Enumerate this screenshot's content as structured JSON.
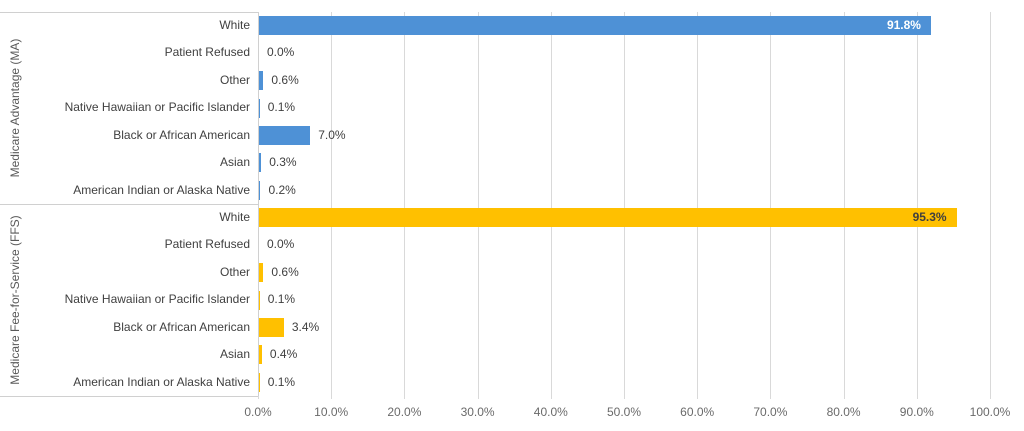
{
  "chart_data": {
    "type": "bar",
    "orientation": "horizontal",
    "title": "",
    "xlabel": "",
    "ylabel": "",
    "legend": "none",
    "gridlines": true,
    "x_axis": {
      "min": 0,
      "max": 100,
      "step": 10,
      "tick_labels": [
        "0.0%",
        "10.0%",
        "20.0%",
        "30.0%",
        "40.0%",
        "50.0%",
        "60.0%",
        "70.0%",
        "80.0%",
        "90.0%",
        "100.0%"
      ]
    },
    "groups": [
      {
        "label": "Medicare Advantage (MA)",
        "bar_color": "#4E91D6",
        "items": [
          {
            "category": "White",
            "value": 91.8,
            "data_label": "91.8%",
            "label_inside": true,
            "label_color": "#FFFFFF"
          },
          {
            "category": "Patient Refused",
            "value": 0.0,
            "data_label": "0.0%",
            "label_inside": false
          },
          {
            "category": "Other",
            "value": 0.6,
            "data_label": "0.6%",
            "label_inside": false
          },
          {
            "category": "Native Hawaiian or Pacific Islander",
            "value": 0.1,
            "data_label": "0.1%",
            "label_inside": false
          },
          {
            "category": "Black or African American",
            "value": 7.0,
            "data_label": "7.0%",
            "label_inside": false
          },
          {
            "category": "Asian",
            "value": 0.3,
            "data_label": "0.3%",
            "label_inside": false
          },
          {
            "category": "American Indian or Alaska Native",
            "value": 0.2,
            "data_label": "0.2%",
            "label_inside": false
          }
        ]
      },
      {
        "label": "Medicare Fee-for-Service (FFS)",
        "bar_color": "#FFC000",
        "items": [
          {
            "category": "White",
            "value": 95.3,
            "data_label": "95.3%",
            "label_inside": true,
            "label_color": "#3F3F3F"
          },
          {
            "category": "Patient Refused",
            "value": 0.0,
            "data_label": "0.0%",
            "label_inside": false
          },
          {
            "category": "Other",
            "value": 0.6,
            "data_label": "0.6%",
            "label_inside": false
          },
          {
            "category": "Native Hawaiian or Pacific Islander",
            "value": 0.1,
            "data_label": "0.1%",
            "label_inside": false
          },
          {
            "category": "Black or African American",
            "value": 3.4,
            "data_label": "3.4%",
            "label_inside": false
          },
          {
            "category": "Asian",
            "value": 0.4,
            "data_label": "0.4%",
            "label_inside": false
          },
          {
            "category": "American Indian or Alaska Native",
            "value": 0.1,
            "data_label": "0.1%",
            "label_inside": false
          }
        ]
      }
    ],
    "colors": {
      "ma_blue": "#4E91D6",
      "ffs_gold": "#FFC000",
      "gridline": "#D9D9D9",
      "axis_text": "#6A6A6A",
      "category_text": "#404040",
      "value_text": "#3F3F3F",
      "separator": "#D0D0D0"
    }
  }
}
